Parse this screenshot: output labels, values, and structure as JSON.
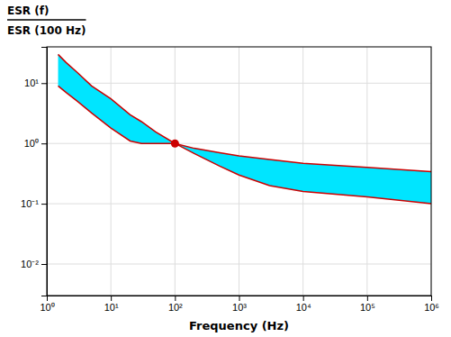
{
  "chart_data": {
    "type": "line",
    "log": true,
    "grid": true,
    "color": "#00E5FF",
    "xlabel": "Frequency (Hz)",
    "ylabel": [
      "ESR (f)",
      "ESR (100 Hz)"
    ],
    "xlim": [
      1,
      1000000.0
    ],
    "ylim": [
      0.003,
      40
    ],
    "xticks": [
      {
        "value": 1,
        "label": "10⁰"
      },
      {
        "value": 10,
        "label": "10¹"
      },
      {
        "value": 100,
        "label": "10²"
      },
      {
        "value": 1000,
        "label": "10³"
      },
      {
        "value": 10000,
        "label": "10⁴"
      },
      {
        "value": 100000,
        "label": "10⁵"
      },
      {
        "value": 1000000,
        "label": "10⁶"
      }
    ],
    "yticks": [
      {
        "value": 0.01,
        "label": "10⁻²"
      },
      {
        "value": 0.1,
        "label": "10⁻¹"
      },
      {
        "value": 1,
        "label": "10⁰"
      },
      {
        "value": 10,
        "label": "10¹"
      }
    ],
    "x": [
      1.5,
      2,
      3,
      5,
      10,
      20,
      30,
      50,
      100,
      200,
      500,
      1000,
      3000,
      10000,
      100000,
      1000000
    ],
    "series": [
      {
        "type": "line",
        "color": "#CC0000",
        "values": [
          30,
          22,
          15,
          9,
          5.5,
          3.0,
          2.3,
          1.55,
          1.0,
          0.83,
          0.7,
          0.62,
          0.54,
          0.47,
          0.4,
          0.34
        ]
      },
      {
        "type": "line",
        "color": "#CC0000",
        "values": [
          9,
          7,
          5,
          3.2,
          1.8,
          1.1,
          1.0,
          1.0,
          1.0,
          0.68,
          0.42,
          0.3,
          0.2,
          0.16,
          0.13,
          0.1
        ]
      },
      {
        "type": "scatter",
        "color": "#CC0000",
        "x": [
          100
        ],
        "values": [
          1.0
        ]
      }
    ]
  }
}
